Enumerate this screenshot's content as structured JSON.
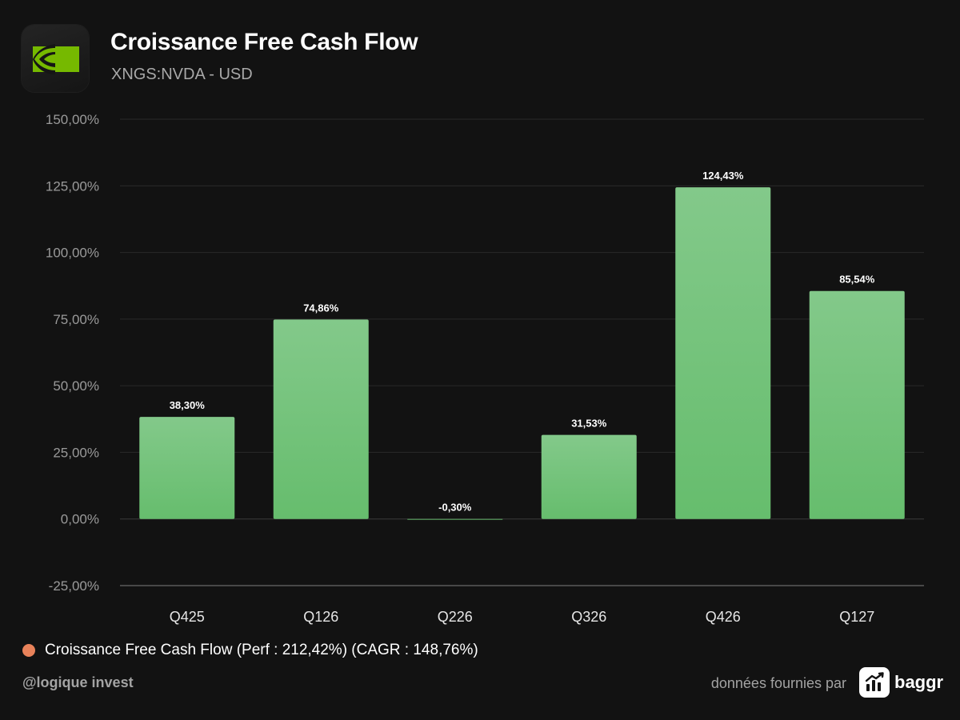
{
  "header": {
    "title": "Croissance Free Cash Flow",
    "subtitle": "XNGS:NVDA - USD",
    "logo_icon": "nvidia-eye-logo-icon"
  },
  "chart_data": {
    "type": "bar",
    "categories": [
      "Q425",
      "Q126",
      "Q226",
      "Q326",
      "Q426",
      "Q127"
    ],
    "series": [
      {
        "name": "Croissance Free Cash Flow (Perf : 212,42%) (CAGR : 148,76%)",
        "values": [
          38.3,
          74.86,
          -0.3,
          31.53,
          124.43,
          85.54
        ]
      }
    ],
    "data_labels": [
      "38,30%",
      "74,86%",
      "-0,30%",
      "31,53%",
      "124,43%",
      "85,54%"
    ],
    "y_ticks": [
      150,
      125,
      100,
      75,
      50,
      25,
      0,
      -25
    ],
    "y_tick_labels": [
      "150,00%",
      "125,00%",
      "100,00%",
      "75,00%",
      "50,00%",
      "25,00%",
      "0,00%",
      "-25,00%"
    ],
    "ylim": [
      -25,
      150
    ],
    "grid": true,
    "legend_position": "bottom-left",
    "bar_color_top": "#83c98a",
    "bar_color_bottom": "#66bd6d",
    "legend_marker_color": "#e8825a"
  },
  "legend": {
    "label": "Croissance Free Cash Flow (Perf : 212,42%) (CAGR : 148,76%)",
    "marker_color": "#e8825a"
  },
  "footer": {
    "handle": "@logique invest",
    "provider_text": "données fournies par",
    "brand_name": "baggr",
    "brand_icon": "bar-chart-trend-icon"
  }
}
